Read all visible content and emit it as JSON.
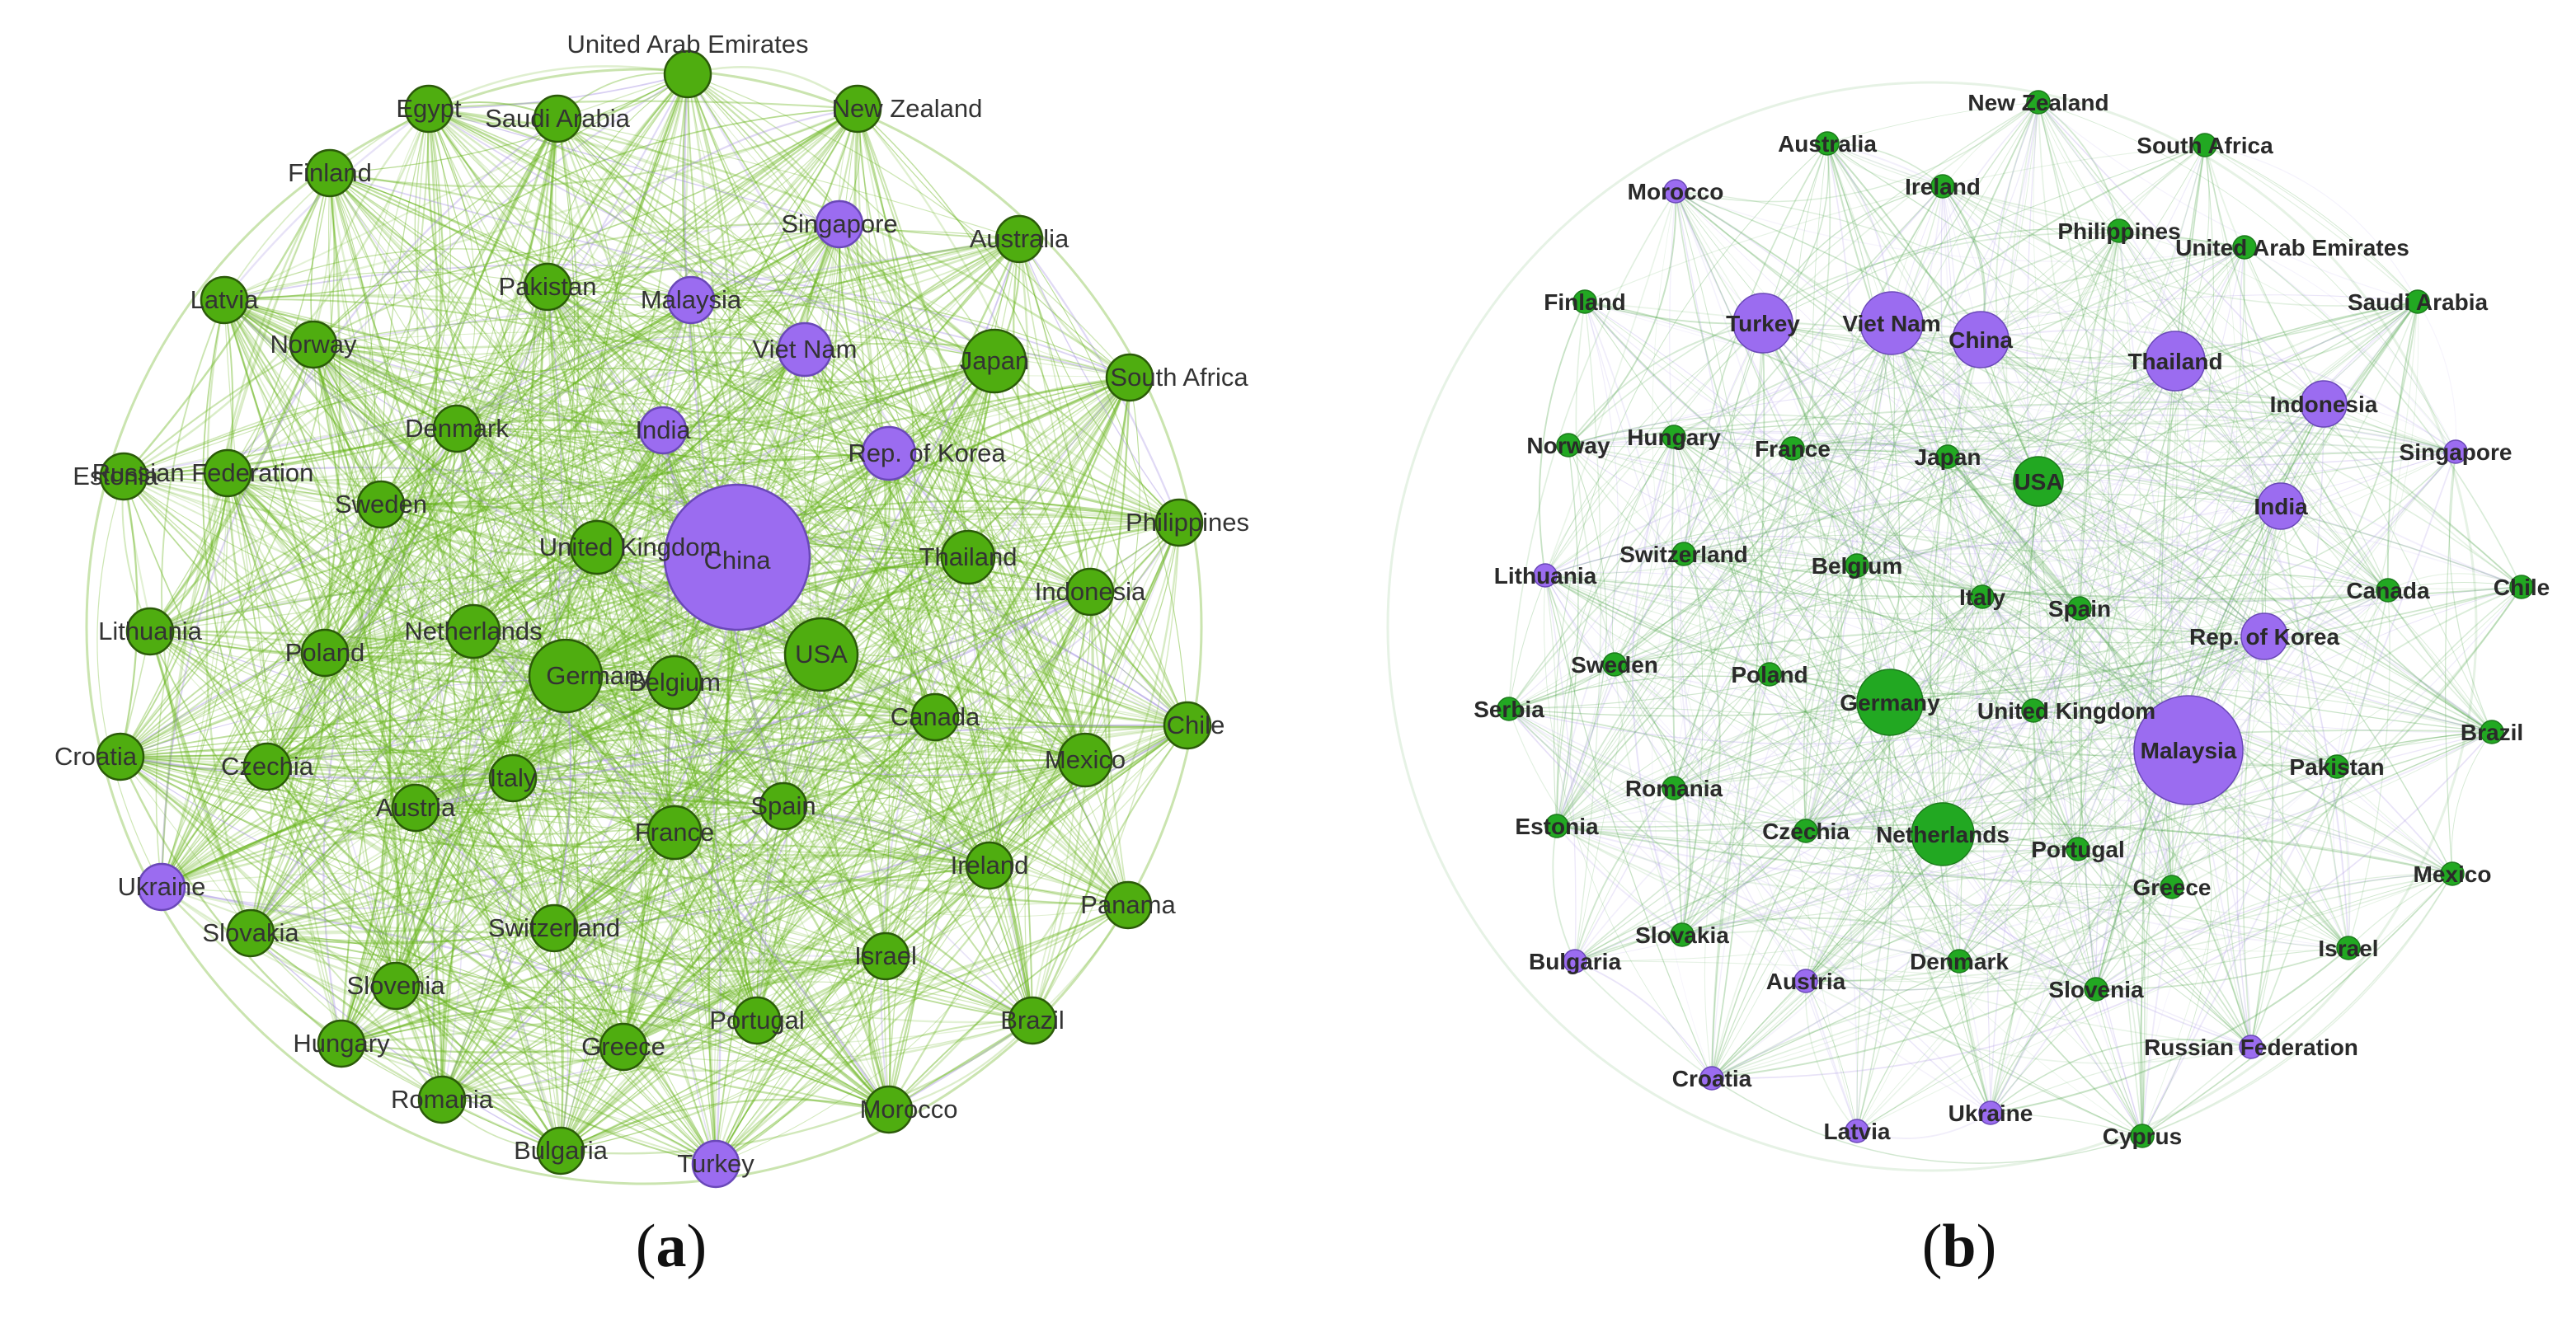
{
  "panels": [
    {
      "id": "a",
      "caption_open": "(",
      "caption_letter": "a",
      "caption_close": ")",
      "edge_color": "#66b31a",
      "edge_color_alt": "#a08ae0",
      "nodes": [
        {
          "label": "China",
          "group": "purple",
          "size": 3
        },
        {
          "label": "USA",
          "group": "green",
          "size": 2
        },
        {
          "label": "Germany",
          "group": "green",
          "size": 2
        },
        {
          "label": "Belgium",
          "group": "green",
          "size": 1
        },
        {
          "label": "Netherlands",
          "group": "green",
          "size": 1
        },
        {
          "label": "United Kingdom",
          "group": "green",
          "size": 1
        },
        {
          "label": "Italy",
          "group": "green",
          "size": 1
        },
        {
          "label": "France",
          "group": "green",
          "size": 1
        },
        {
          "label": "Spain",
          "group": "green",
          "size": 1
        },
        {
          "label": "India",
          "group": "purple",
          "size": 1
        },
        {
          "label": "Viet Nam",
          "group": "purple",
          "size": 1
        },
        {
          "label": "Malaysia",
          "group": "purple",
          "size": 1
        },
        {
          "label": "Singapore",
          "group": "purple",
          "size": 1
        },
        {
          "label": "Rep. of Korea",
          "group": "purple",
          "size": 1
        },
        {
          "label": "Japan",
          "group": "green",
          "size": 1
        },
        {
          "label": "Thailand",
          "group": "green",
          "size": 1
        },
        {
          "label": "Indonesia",
          "group": "green",
          "size": 1
        },
        {
          "label": "Canada",
          "group": "green",
          "size": 1
        },
        {
          "label": "Mexico",
          "group": "green",
          "size": 1
        },
        {
          "label": "Chile",
          "group": "green",
          "size": 1
        },
        {
          "label": "Philippines",
          "group": "green",
          "size": 1
        },
        {
          "label": "South Africa",
          "group": "green",
          "size": 1
        },
        {
          "label": "Australia",
          "group": "green",
          "size": 1
        },
        {
          "label": "New Zealand",
          "group": "green",
          "size": 1
        },
        {
          "label": "United Arab Emirates",
          "group": "green",
          "size": 1
        },
        {
          "label": "Saudi Arabia",
          "group": "green",
          "size": 1
        },
        {
          "label": "Egypt",
          "group": "green",
          "size": 1
        },
        {
          "label": "Finland",
          "group": "green",
          "size": 1
        },
        {
          "label": "Latvia",
          "group": "green",
          "size": 1
        },
        {
          "label": "Norway",
          "group": "green",
          "size": 1
        },
        {
          "label": "Pakistan",
          "group": "green",
          "size": 1
        },
        {
          "label": "Denmark",
          "group": "green",
          "size": 1
        },
        {
          "label": "Sweden",
          "group": "green",
          "size": 1
        },
        {
          "label": "Russian Federation",
          "group": "green",
          "size": 1
        },
        {
          "label": "Estonia",
          "group": "green",
          "size": 1
        },
        {
          "label": "Lithuania",
          "group": "green",
          "size": 1
        },
        {
          "label": "Poland",
          "group": "green",
          "size": 1
        },
        {
          "label": "Croatia",
          "group": "green",
          "size": 1
        },
        {
          "label": "Czechia",
          "group": "green",
          "size": 1
        },
        {
          "label": "Austria",
          "group": "green",
          "size": 1
        },
        {
          "label": "Ukraine",
          "group": "purple",
          "size": 1
        },
        {
          "label": "Slovakia",
          "group": "green",
          "size": 1
        },
        {
          "label": "Slovenia",
          "group": "green",
          "size": 1
        },
        {
          "label": "Hungary",
          "group": "green",
          "size": 1
        },
        {
          "label": "Romania",
          "group": "green",
          "size": 1
        },
        {
          "label": "Bulgaria",
          "group": "green",
          "size": 1
        },
        {
          "label": "Turkey",
          "group": "purple",
          "size": 1
        },
        {
          "label": "Morocco",
          "group": "green",
          "size": 1
        },
        {
          "label": "Greece",
          "group": "green",
          "size": 1
        },
        {
          "label": "Portugal",
          "group": "green",
          "size": 1
        },
        {
          "label": "Switzerland",
          "group": "green",
          "size": 1
        },
        {
          "label": "Israel",
          "group": "green",
          "size": 1
        },
        {
          "label": "Brazil",
          "group": "green",
          "size": 1
        },
        {
          "label": "Panama",
          "group": "green",
          "size": 1
        },
        {
          "label": "Ireland",
          "group": "green",
          "size": 1
        }
      ]
    },
    {
      "id": "b",
      "caption_open": "(",
      "caption_letter": "b",
      "caption_close": ")",
      "edge_color": "#55a850",
      "edge_color_alt": "#b8a8e8",
      "nodes": [
        {
          "label": "Malaysia",
          "group": "purple",
          "size": 3
        },
        {
          "label": "Germany",
          "group": "green",
          "size": 2
        },
        {
          "label": "Netherlands",
          "group": "green",
          "size": 2
        },
        {
          "label": "Viet Nam",
          "group": "purple",
          "size": 2
        },
        {
          "label": "Turkey",
          "group": "purple",
          "size": 2
        },
        {
          "label": "Thailand",
          "group": "purple",
          "size": 2
        },
        {
          "label": "China",
          "group": "purple",
          "size": 2
        },
        {
          "label": "Indonesia",
          "group": "purple",
          "size": 2
        },
        {
          "label": "India",
          "group": "purple",
          "size": 2
        },
        {
          "label": "Rep. of Korea",
          "group": "purple",
          "size": 2
        },
        {
          "label": "USA",
          "group": "green",
          "size": 2
        },
        {
          "label": "New Zealand",
          "group": "green",
          "size": 1
        },
        {
          "label": "Australia",
          "group": "green",
          "size": 1
        },
        {
          "label": "South Africa",
          "group": "green",
          "size": 1
        },
        {
          "label": "Morocco",
          "group": "purple",
          "size": 1
        },
        {
          "label": "Ireland",
          "group": "green",
          "size": 1
        },
        {
          "label": "Philippines",
          "group": "green",
          "size": 1
        },
        {
          "label": "United Arab Emirates",
          "group": "green",
          "size": 1
        },
        {
          "label": "Finland",
          "group": "green",
          "size": 1
        },
        {
          "label": "Saudi Arabia",
          "group": "green",
          "size": 1
        },
        {
          "label": "Norway",
          "group": "green",
          "size": 1
        },
        {
          "label": "Hungary",
          "group": "green",
          "size": 1
        },
        {
          "label": "France",
          "group": "green",
          "size": 1
        },
        {
          "label": "Japan",
          "group": "green",
          "size": 1
        },
        {
          "label": "Singapore",
          "group": "purple",
          "size": 1
        },
        {
          "label": "Switzerland",
          "group": "green",
          "size": 1
        },
        {
          "label": "Belgium",
          "group": "green",
          "size": 1
        },
        {
          "label": "Lithuania",
          "group": "purple",
          "size": 1
        },
        {
          "label": "Italy",
          "group": "green",
          "size": 1
        },
        {
          "label": "Canada",
          "group": "green",
          "size": 1
        },
        {
          "label": "Chile",
          "group": "green",
          "size": 1
        },
        {
          "label": "Sweden",
          "group": "green",
          "size": 1
        },
        {
          "label": "Poland",
          "group": "green",
          "size": 1
        },
        {
          "label": "Spain",
          "group": "green",
          "size": 1
        },
        {
          "label": "Serbia",
          "group": "green",
          "size": 1
        },
        {
          "label": "United Kingdom",
          "group": "green",
          "size": 1
        },
        {
          "label": "Brazil",
          "group": "green",
          "size": 1
        },
        {
          "label": "Pakistan",
          "group": "green",
          "size": 1
        },
        {
          "label": "Romania",
          "group": "green",
          "size": 1
        },
        {
          "label": "Estonia",
          "group": "green",
          "size": 1
        },
        {
          "label": "Czechia",
          "group": "green",
          "size": 1
        },
        {
          "label": "Portugal",
          "group": "green",
          "size": 1
        },
        {
          "label": "Greece",
          "group": "green",
          "size": 1
        },
        {
          "label": "Mexico",
          "group": "green",
          "size": 1
        },
        {
          "label": "Slovakia",
          "group": "green",
          "size": 1
        },
        {
          "label": "Bulgaria",
          "group": "purple",
          "size": 1
        },
        {
          "label": "Austria",
          "group": "purple",
          "size": 1
        },
        {
          "label": "Denmark",
          "group": "green",
          "size": 1
        },
        {
          "label": "Slovenia",
          "group": "green",
          "size": 1
        },
        {
          "label": "Israel",
          "group": "green",
          "size": 1
        },
        {
          "label": "Russian Federation",
          "group": "purple",
          "size": 1
        },
        {
          "label": "Croatia",
          "group": "purple",
          "size": 1
        },
        {
          "label": "Ukraine",
          "group": "purple",
          "size": 1
        },
        {
          "label": "Latvia",
          "group": "purple",
          "size": 1
        },
        {
          "label": "Cyprus",
          "group": "green",
          "size": 1
        }
      ]
    }
  ],
  "colors": {
    "green_node_a": "#4fad10",
    "green_node_b": "#22a822",
    "purple_node": "#9b6cf0",
    "node_stroke_a": "#2b5a09",
    "node_stroke_b": "#1c7a1c"
  }
}
